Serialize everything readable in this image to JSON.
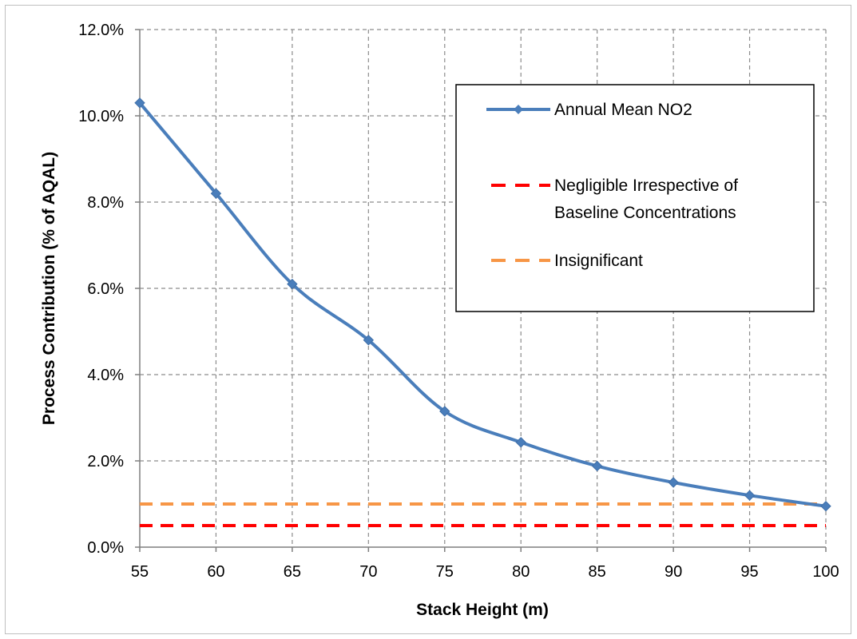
{
  "chart_data": {
    "type": "line",
    "title": "",
    "xlabel": "Stack Height (m)",
    "ylabel": "Process Contribution (% of AQAL)",
    "x": [
      55,
      60,
      65,
      70,
      75,
      80,
      85,
      90,
      95,
      100
    ],
    "x_ticks": [
      "55",
      "60",
      "65",
      "70",
      "75",
      "80",
      "85",
      "90",
      "95",
      "100"
    ],
    "y_ticks": [
      "0.0%",
      "2.0%",
      "4.0%",
      "6.0%",
      "8.0%",
      "10.0%",
      "12.0%"
    ],
    "xlim": [
      55,
      100
    ],
    "ylim": [
      0,
      12
    ],
    "grid": true,
    "legend_position": "top-right",
    "series": [
      {
        "name": "Annual Mean NO2",
        "style": "solid-markers",
        "color": "#4a7ebb",
        "values": [
          10.3,
          8.2,
          6.1,
          4.8,
          3.15,
          2.43,
          1.88,
          1.5,
          1.2,
          0.95
        ]
      },
      {
        "name": "Negligible Irrespective of Baseline Concentrations",
        "name_lines": [
          "Negligible Irrespective of",
          "Baseline Concentrations"
        ],
        "style": "dashed",
        "color": "#ff0000",
        "values": [
          0.5,
          0.5,
          0.5,
          0.5,
          0.5,
          0.5,
          0.5,
          0.5,
          0.5,
          0.5
        ]
      },
      {
        "name": "Insignificant",
        "style": "dashed",
        "color": "#f79646",
        "values": [
          1,
          1,
          1,
          1,
          1,
          1,
          1,
          1,
          1,
          1
        ]
      }
    ]
  }
}
